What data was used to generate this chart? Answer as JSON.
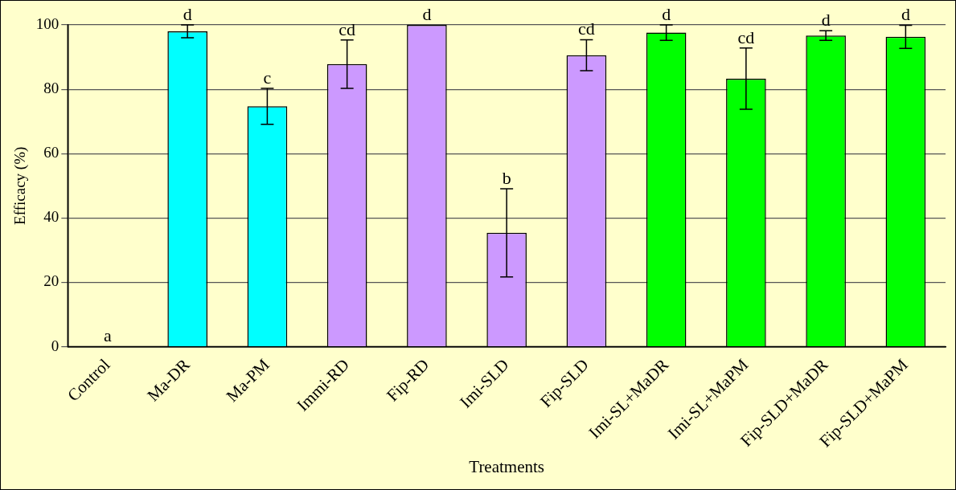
{
  "chart_data": {
    "type": "bar",
    "xlabel": "Treatments",
    "ylabel": "Efficacy (%)",
    "categories": [
      "Control",
      "Ma-DR",
      "Ma-PM",
      "Immi-RD",
      "Fip-RD",
      "Imi-SLD",
      "Fip-SLD",
      "Imi-SL+MaDR",
      "Imi-SL+MaPM",
      "Fip-SLD+MaDR",
      "Fip-SLD+MaPM"
    ],
    "values": [
      0,
      98,
      74.7,
      87.8,
      100,
      35.4,
      90.6,
      97.6,
      83.3,
      96.7,
      96.3
    ],
    "errors": [
      null,
      2,
      5.6,
      7.5,
      null,
      13.7,
      4.8,
      2.4,
      9.5,
      1.5,
      3.6
    ],
    "colors": [
      "#cc99ff",
      "#00ffff",
      "#00ffff",
      "#cc99ff",
      "#cc99ff",
      "#cc99ff",
      "#cc99ff",
      "#00ff00",
      "#00ff00",
      "#00ff00",
      "#00ff00"
    ],
    "ylim": [
      0,
      100
    ],
    "yticks": [
      0,
      20,
      40,
      60,
      80,
      100
    ],
    "grid": "y",
    "legend": false,
    "annotations": [
      {
        "text": "a",
        "x": "Control",
        "y": 0
      },
      {
        "text": "d",
        "x": "Ma-DR",
        "y": 100
      },
      {
        "text": "c",
        "x": "Ma-PM",
        "y": 80.3
      },
      {
        "text": "cd",
        "x": "Immi-RD",
        "y": 95.3
      },
      {
        "text": "d",
        "x": "Fip-RD",
        "y": 100
      },
      {
        "text": "b",
        "x": "Imi-SLD",
        "y": 49.1
      },
      {
        "text": "cd",
        "x": "Fip-SLD",
        "y": 95.4
      },
      {
        "text": "d",
        "x": "Imi-SL+MaDR",
        "y": 100
      },
      {
        "text": "cd",
        "x": "Imi-SL+MaPM",
        "y": 92.8
      },
      {
        "text": "d",
        "x": "Fip-SLD+MaDR",
        "y": 98.2
      },
      {
        "text": "d",
        "x": "Fip-SLD+MaPM",
        "y": 99.9
      }
    ]
  }
}
